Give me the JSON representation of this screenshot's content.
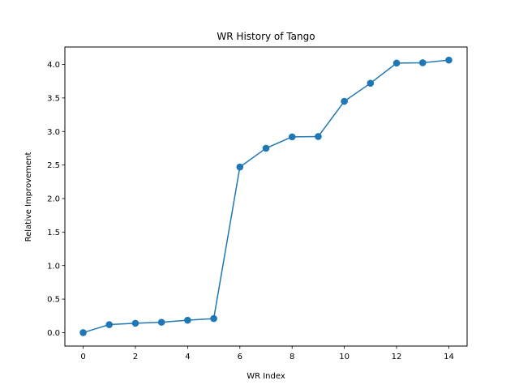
{
  "chart_data": {
    "type": "line",
    "title": "WR History of Tango",
    "xlabel": "WR Index",
    "ylabel": "Relative Improvement",
    "xlim": [
      -0.7,
      14.7
    ],
    "ylim": [
      -0.2,
      4.26
    ],
    "xticks": [
      0,
      2,
      4,
      6,
      8,
      10,
      12,
      14
    ],
    "xtick_labels": [
      "0",
      "2",
      "4",
      "6",
      "8",
      "10",
      "12",
      "14"
    ],
    "yticks": [
      0.0,
      0.5,
      1.0,
      1.5,
      2.0,
      2.5,
      3.0,
      3.5,
      4.0
    ],
    "ytick_labels": [
      "0.0",
      "0.5",
      "1.0",
      "1.5",
      "2.0",
      "2.5",
      "3.0",
      "3.5",
      "4.0"
    ],
    "grid": false,
    "series": [
      {
        "color": "#1f77b4",
        "marker": "circle",
        "x": [
          0,
          1,
          2,
          3,
          4,
          5,
          6,
          7,
          8,
          9,
          10,
          11,
          12,
          13,
          14
        ],
        "y": [
          0.0,
          0.12,
          0.14,
          0.155,
          0.185,
          0.21,
          2.47,
          2.75,
          2.92,
          2.925,
          3.45,
          3.72,
          4.02,
          4.025,
          4.065
        ]
      }
    ]
  }
}
